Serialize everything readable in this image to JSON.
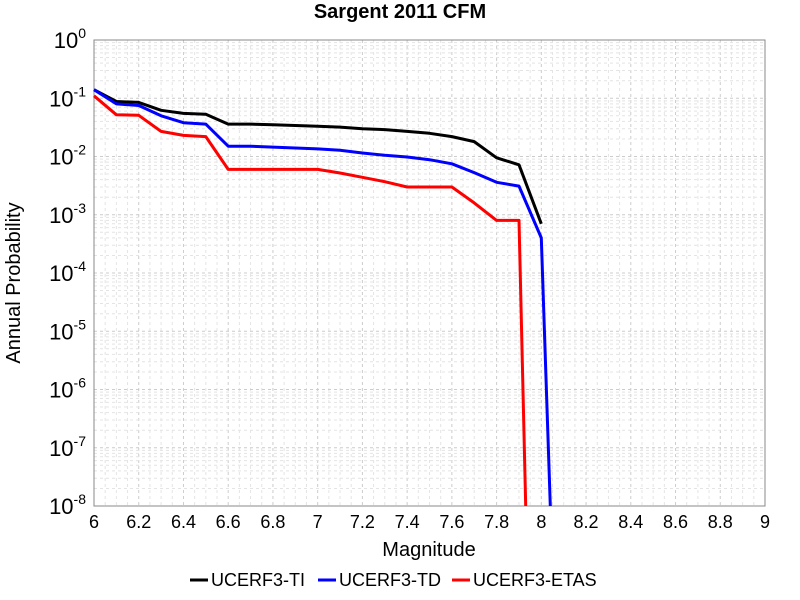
{
  "chart_data": {
    "type": "line",
    "title": "Sargent 2011 CFM",
    "xlabel": "Magnitude",
    "ylabel": "Annual Probability",
    "y_scale": "log",
    "xlim": [
      6,
      9
    ],
    "ylim": [
      1e-08,
      1
    ],
    "x_ticks": [
      "6",
      "6.2",
      "6.4",
      "6.6",
      "6.8",
      "7",
      "7.2",
      "7.4",
      "7.6",
      "7.8",
      "8",
      "8.2",
      "8.4",
      "8.6",
      "8.8",
      "9"
    ],
    "y_ticks": [
      {
        "base": "10",
        "exp": "0"
      },
      {
        "base": "10",
        "exp": "-1"
      },
      {
        "base": "10",
        "exp": "-2"
      },
      {
        "base": "10",
        "exp": "-3"
      },
      {
        "base": "10",
        "exp": "-4"
      },
      {
        "base": "10",
        "exp": "-5"
      },
      {
        "base": "10",
        "exp": "-6"
      },
      {
        "base": "10",
        "exp": "-7"
      },
      {
        "base": "10",
        "exp": "-8"
      }
    ],
    "grid": true,
    "legend_position": "bottom",
    "series": [
      {
        "name": "UCERF3-TI",
        "color": "#000000",
        "x": [
          6.0,
          6.1,
          6.2,
          6.3,
          6.4,
          6.5,
          6.6,
          6.7,
          6.8,
          6.9,
          7.0,
          7.1,
          7.2,
          7.3,
          7.4,
          7.5,
          7.6,
          7.7,
          7.8,
          7.9,
          8.0
        ],
        "y": [
          0.14,
          0.088,
          0.085,
          0.062,
          0.055,
          0.053,
          0.036,
          0.036,
          0.035,
          0.034,
          0.033,
          0.032,
          0.03,
          0.029,
          0.027,
          0.025,
          0.022,
          0.018,
          0.0095,
          0.0072,
          0.0007
        ]
      },
      {
        "name": "UCERF3-TD",
        "color": "#0000ff",
        "x": [
          6.0,
          6.1,
          6.2,
          6.3,
          6.4,
          6.5,
          6.6,
          6.7,
          6.8,
          6.9,
          7.0,
          7.1,
          7.2,
          7.3,
          7.4,
          7.5,
          7.6,
          7.7,
          7.8,
          7.9,
          8.0,
          8.04
        ],
        "y": [
          0.14,
          0.08,
          0.075,
          0.05,
          0.038,
          0.036,
          0.015,
          0.015,
          0.0145,
          0.014,
          0.0135,
          0.0128,
          0.0115,
          0.0105,
          0.0098,
          0.0088,
          0.0075,
          0.0053,
          0.0036,
          0.0031,
          0.0004,
          1e-08
        ]
      },
      {
        "name": "UCERF3-ETAS",
        "color": "#ff0000",
        "x": [
          6.0,
          6.1,
          6.2,
          6.3,
          6.4,
          6.5,
          6.6,
          6.7,
          6.8,
          6.9,
          7.0,
          7.1,
          7.2,
          7.3,
          7.4,
          7.5,
          7.6,
          7.7,
          7.8,
          7.9,
          7.93
        ],
        "y": [
          0.11,
          0.052,
          0.051,
          0.027,
          0.023,
          0.022,
          0.006,
          0.006,
          0.006,
          0.006,
          0.006,
          0.0052,
          0.0044,
          0.0037,
          0.003,
          0.003,
          0.003,
          0.0016,
          0.0008,
          0.0008,
          1e-08
        ]
      }
    ]
  }
}
